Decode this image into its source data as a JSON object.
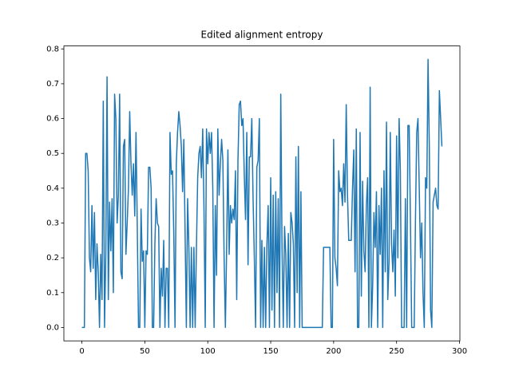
{
  "chart_data": {
    "type": "line",
    "title": "Edited alignment entropy",
    "x": [
      0,
      1,
      2,
      3,
      4,
      5,
      6,
      7,
      8,
      9,
      10,
      11,
      12,
      13,
      14,
      15,
      16,
      17,
      18,
      19,
      20,
      21,
      22,
      23,
      24,
      25,
      26,
      27,
      28,
      29,
      30,
      31,
      32,
      33,
      34,
      35,
      36,
      37,
      38,
      39,
      40,
      41,
      42,
      43,
      44,
      45,
      46,
      47,
      48,
      49,
      50,
      51,
      52,
      53,
      54,
      55,
      56,
      57,
      58,
      59,
      60,
      61,
      62,
      63,
      64,
      65,
      66,
      67,
      68,
      69,
      70,
      71,
      72,
      73,
      74,
      75,
      76,
      77,
      78,
      79,
      80,
      81,
      82,
      83,
      84,
      85,
      86,
      87,
      88,
      89,
      90,
      91,
      92,
      93,
      94,
      95,
      96,
      97,
      98,
      99,
      100,
      101,
      102,
      103,
      104,
      105,
      106,
      107,
      108,
      109,
      110,
      111,
      112,
      113,
      114,
      115,
      116,
      117,
      118,
      119,
      120,
      121,
      122,
      123,
      124,
      125,
      126,
      127,
      128,
      129,
      130,
      131,
      132,
      133,
      134,
      135,
      136,
      137,
      138,
      139,
      140,
      141,
      142,
      143,
      144,
      145,
      146,
      147,
      148,
      149,
      150,
      151,
      152,
      153,
      154,
      155,
      156,
      157,
      158,
      159,
      160,
      161,
      162,
      163,
      164,
      165,
      166,
      167,
      168,
      169,
      170,
      171,
      172,
      173,
      174,
      175,
      176,
      177,
      178,
      179,
      180,
      181,
      182,
      183,
      184,
      185,
      186,
      187,
      188,
      189,
      190,
      191,
      192,
      193,
      194,
      195,
      196,
      197,
      198,
      199,
      200,
      201,
      202,
      203,
      204,
      205,
      206,
      207,
      208,
      209,
      210,
      211,
      212,
      213,
      214,
      215,
      216,
      217,
      218,
      219,
      220,
      221,
      222,
      223,
      224,
      225,
      226,
      227,
      228,
      229,
      230,
      231,
      232,
      233,
      234,
      235,
      236,
      237,
      238,
      239,
      240,
      241,
      242,
      243,
      244,
      245,
      246,
      247,
      248,
      249,
      250,
      251,
      252,
      253,
      254,
      255,
      256,
      257,
      258,
      259,
      260,
      261,
      262,
      263,
      264,
      265,
      266,
      267,
      268,
      269,
      270,
      271,
      272,
      273,
      274,
      275,
      276,
      277,
      278,
      279,
      280,
      281,
      282,
      283,
      284,
      285,
      286
    ],
    "series": [
      {
        "color": "#1f77b4",
        "values": [
          0,
          0,
          0,
          0.5,
          0.5,
          0.45,
          0.2,
          0.16,
          0.35,
          0.17,
          0.33,
          0.08,
          0.24,
          0.16,
          0,
          0.21,
          0.08,
          0.65,
          0,
          0.21,
          0.72,
          0.08,
          0.36,
          0.22,
          0.37,
          0.1,
          0.67,
          0.6,
          0.3,
          0.38,
          0.67,
          0.16,
          0.14,
          0.52,
          0.54,
          0.21,
          0.3,
          0.4,
          0.62,
          0.47,
          0.38,
          0.47,
          0.32,
          0.56,
          0.29,
          0,
          0,
          0.34,
          0.19,
          0.22,
          0,
          0.22,
          0.21,
          0.46,
          0.46,
          0.4,
          0,
          0,
          0.24,
          0.37,
          0.3,
          0.29,
          0,
          0.17,
          0.09,
          0.25,
          0,
          0.17,
          0.17,
          0,
          0.56,
          0.44,
          0.45,
          0.27,
          0,
          0.47,
          0.56,
          0.62,
          0.58,
          0.52,
          0.39,
          0.54,
          0.27,
          0,
          0.37,
          0.23,
          0,
          0.23,
          0,
          0.23,
          0,
          0.23,
          0.43,
          0.5,
          0.52,
          0.43,
          0.57,
          0.34,
          0,
          0.57,
          0.47,
          0.56,
          0.5,
          0.56,
          0.4,
          0,
          0.35,
          0.15,
          0.57,
          0.38,
          0.47,
          0.54,
          0.48,
          0.2,
          0,
          0.23,
          0.51,
          0.21,
          0.35,
          0.3,
          0.34,
          0.31,
          0.45,
          0.08,
          0.48,
          0.64,
          0.65,
          0.58,
          0.6,
          0.44,
          0.31,
          0.56,
          0.18,
          0.49,
          0.49,
          0.6,
          0.37,
          0.2,
          0,
          0.46,
          0.48,
          0.6,
          0,
          0.25,
          0,
          0.23,
          0,
          0.24,
          0.35,
          0,
          0.43,
          0.05,
          0.38,
          0,
          0.39,
          0.1,
          0.37,
          0,
          0.67,
          0.23,
          0,
          0.29,
          0.21,
          0,
          0.27,
          0,
          0.33,
          0.3,
          0.24,
          0,
          0.49,
          0.1,
          0.52,
          0,
          0.39,
          0,
          0,
          0,
          0,
          0,
          0,
          0,
          0,
          0,
          0,
          0,
          0,
          0,
          0,
          0,
          0,
          0,
          0.23,
          0.23,
          0.23,
          0.23,
          0.23,
          0.23,
          0,
          0,
          0.54,
          0.2,
          0.17,
          0.12,
          0.45,
          0.39,
          0.4,
          0.35,
          0.47,
          0.36,
          0.64,
          0.38,
          0.25,
          0.25,
          0.25,
          0.4,
          0.51,
          0.16,
          0.57,
          0,
          0,
          0.56,
          0.09,
          0.42,
          0.22,
          0.16,
          0.35,
          0.43,
          0,
          0.69,
          0,
          0.12,
          0.33,
          0.23,
          0.39,
          0,
          0.35,
          0.21,
          0.4,
          0,
          0.45,
          0.16,
          0.59,
          0.08,
          0.19,
          0.56,
          0.24,
          0.16,
          0.28,
          0.09,
          0.55,
          0.2,
          0.6,
          0.45,
          0,
          0,
          0,
          0.37,
          0,
          0.58,
          0.58,
          0.31,
          0,
          0,
          0,
          0.31,
          0.56,
          0.6,
          0.4,
          0.2,
          0.3,
          0.1,
          0,
          0.43,
          0.4,
          0.77,
          0.52,
          0.05,
          0,
          0.36,
          0.38,
          0.4,
          0.35,
          0.34,
          0.68,
          0.6,
          0.52
        ]
      }
    ],
    "xlim": [
      -14.3,
      300.3
    ],
    "ylim": [
      -0.0385,
      0.8085
    ],
    "xticks": [
      0,
      50,
      100,
      150,
      200,
      250,
      300
    ],
    "yticks": [
      {
        "value": 0,
        "label": "0.0"
      },
      {
        "value": 0.1,
        "label": "0.1"
      },
      {
        "value": 0.2,
        "label": "0.2"
      },
      {
        "value": 0.3,
        "label": "0.3"
      },
      {
        "value": 0.4,
        "label": "0.4"
      },
      {
        "value": 0.5,
        "label": "0.5"
      },
      {
        "value": 0.6,
        "label": "0.6"
      },
      {
        "value": 0.7,
        "label": "0.7"
      },
      {
        "value": 0.8,
        "label": "0.8"
      }
    ]
  }
}
